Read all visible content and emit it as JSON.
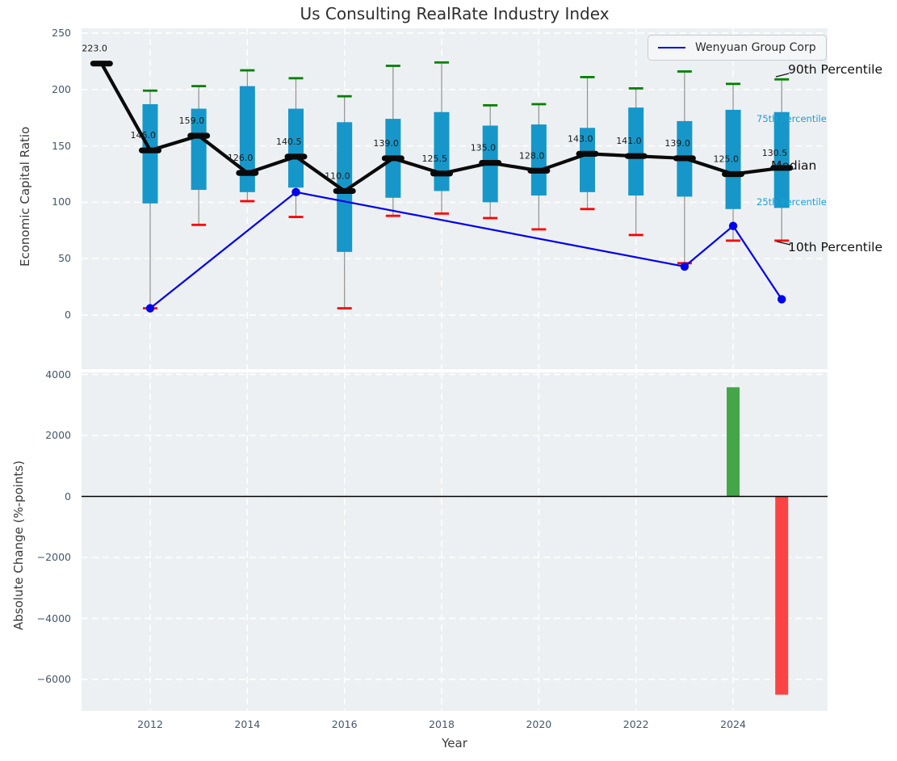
{
  "title": "Us Consulting RealRate Industry Index",
  "legend": {
    "label": "Wenyuan Group Corp"
  },
  "annotations": {
    "p90": "90th Percentile",
    "p75": "75th Percentile",
    "median": "Median",
    "p25": "25th Percentile",
    "p10": "10th Percentile"
  },
  "colors": {
    "box_fill": "#1797c9",
    "median_line": "#0a0a0a",
    "whisker": "#909090",
    "cap_90th": "#008000",
    "cap_10th": "#ff0000",
    "company_line": "#0000ee",
    "bar_positive": "#44a648",
    "bar_negative": "#fb4343",
    "axes_background": "#edf0f2",
    "grid": "#ffffff",
    "tick_label": "#46566b",
    "percentile_label_cyan": "#1a9fd4"
  },
  "chart_data": [
    {
      "type": "boxplot",
      "title": "Us Consulting RealRate Industry Index",
      "xlabel": "Year",
      "ylabel": "Economic Capital Ratio",
      "ylim": [
        -48,
        254
      ],
      "yticks": [
        250,
        200,
        150,
        100,
        50,
        0
      ],
      "xticks": [
        2012,
        2014,
        2016,
        2018,
        2020,
        2022,
        2024
      ],
      "grid": true,
      "legend_position": "upper right",
      "boxes": [
        {
          "year": 2011,
          "median": 223.0,
          "label": "223.0",
          "q1": null,
          "q3": null,
          "p10": null,
          "p90": null
        },
        {
          "year": 2012,
          "median": 146.0,
          "label": "146.0",
          "q1": 99,
          "q3": 187,
          "p10": 6,
          "p90": 199
        },
        {
          "year": 2013,
          "median": 159.0,
          "label": "159.0",
          "q1": 111,
          "q3": 183,
          "p10": 80,
          "p90": 203
        },
        {
          "year": 2014,
          "median": 126.0,
          "label": "126.0",
          "q1": 109,
          "q3": 203,
          "p10": 101,
          "p90": 217
        },
        {
          "year": 2015,
          "median": 140.5,
          "label": "140.5",
          "q1": 113,
          "q3": 183,
          "p10": 87,
          "p90": 210
        },
        {
          "year": 2016,
          "median": 110.0,
          "label": "110.0",
          "q1": 56,
          "q3": 171,
          "p10": 6,
          "p90": 194
        },
        {
          "year": 2017,
          "median": 139.0,
          "label": "139.0",
          "q1": 104,
          "q3": 174,
          "p10": 88,
          "p90": 221
        },
        {
          "year": 2018,
          "median": 125.5,
          "label": "125.5",
          "q1": 110,
          "q3": 180,
          "p10": 90,
          "p90": 224
        },
        {
          "year": 2019,
          "median": 135.0,
          "label": "135.0",
          "q1": 100,
          "q3": 168,
          "p10": 86,
          "p90": 186
        },
        {
          "year": 2020,
          "median": 128.0,
          "label": "128.0",
          "q1": 106,
          "q3": 169,
          "p10": 76,
          "p90": 187
        },
        {
          "year": 2021,
          "median": 143.0,
          "label": "143.0",
          "q1": 109,
          "q3": 166,
          "p10": 94,
          "p90": 211
        },
        {
          "year": 2022,
          "median": 141.0,
          "label": "141.0",
          "q1": 106,
          "q3": 184,
          "p10": 71,
          "p90": 201
        },
        {
          "year": 2023,
          "median": 139.0,
          "label": "139.0",
          "q1": 105,
          "q3": 172,
          "p10": 46,
          "p90": 216
        },
        {
          "year": 2024,
          "median": 125.0,
          "label": "125.0",
          "q1": 94,
          "q3": 182,
          "p10": 66,
          "p90": 205
        },
        {
          "year": 2025,
          "median": 130.5,
          "label": "130.5",
          "q1": 95,
          "q3": 180,
          "p10": 66,
          "p90": 209
        }
      ],
      "company_series": {
        "name": "Wenyuan Group Corp",
        "points": [
          [
            2012,
            6
          ],
          [
            2015,
            109
          ],
          [
            2023,
            43
          ],
          [
            2024,
            79
          ],
          [
            2025,
            14
          ]
        ]
      }
    },
    {
      "type": "bar",
      "xlabel": "Year",
      "ylabel": "Absolute Change (%-points)",
      "ylim": [
        -7030,
        4065
      ],
      "yticks": [
        4000,
        2000,
        0,
        -2000,
        -4000,
        -6000
      ],
      "xticks": [
        2012,
        2014,
        2016,
        2018,
        2020,
        2022,
        2024
      ],
      "grid": true,
      "bars": [
        {
          "year": 2024,
          "value": 3580,
          "direction": "up"
        },
        {
          "year": 2025,
          "value": -6500,
          "direction": "down"
        }
      ]
    }
  ]
}
